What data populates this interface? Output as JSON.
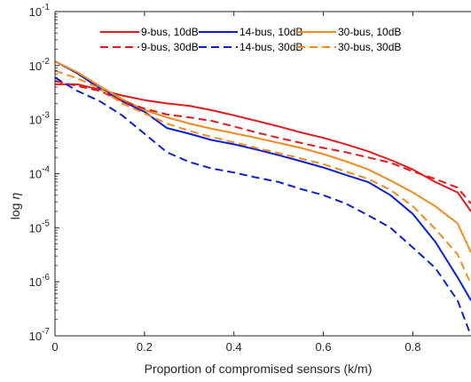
{
  "chart_data": {
    "type": "line",
    "xlabel": "Proportion of compromised sensors (k/m)",
    "ylabel_text": "log",
    "ylabel_symbol": "η",
    "x_scale": "linear",
    "y_scale": "log",
    "xlim": [
      0,
      0.93
    ],
    "ylim_exponents": [
      -7,
      -1
    ],
    "x_ticks": [
      0,
      0.2,
      0.4,
      0.6,
      0.8
    ],
    "x_tick_labels": [
      "0",
      "0.2",
      "0.4",
      "0.6",
      "0.8"
    ],
    "y_tick_exponents": [
      -7,
      -6,
      -5,
      -4,
      -3,
      -2,
      -1
    ],
    "y_tick_base": "10",
    "y_tick_exp_labels": [
      "-7",
      "-6",
      "-5",
      "-4",
      "-3",
      "-2",
      "-1"
    ],
    "grid": false,
    "legend_position": "top",
    "colors": {
      "red": "#e31a1c",
      "blue": "#0a1fd6",
      "orange": "#f5891f"
    },
    "series": [
      {
        "name": "9-bus, 10dB",
        "color": "red",
        "dash": "solid",
        "x": [
          0,
          0.05,
          0.1,
          0.15,
          0.2,
          0.25,
          0.3,
          0.35,
          0.4,
          0.45,
          0.5,
          0.55,
          0.6,
          0.65,
          0.7,
          0.75,
          0.8,
          0.85,
          0.9,
          0.93
        ],
        "y": [
          0.0045,
          0.0045,
          0.0036,
          0.0028,
          0.0023,
          0.002,
          0.0018,
          0.0015,
          0.0012,
          0.00095,
          0.00075,
          0.00058,
          0.00046,
          0.00035,
          0.00026,
          0.00018,
          0.00012,
          7e-05,
          4.5e-05,
          2e-05
        ]
      },
      {
        "name": "14-bus, 10dB",
        "color": "blue",
        "dash": "solid",
        "x": [
          0,
          0.05,
          0.1,
          0.15,
          0.2,
          0.25,
          0.3,
          0.35,
          0.4,
          0.45,
          0.5,
          0.55,
          0.6,
          0.65,
          0.7,
          0.75,
          0.8,
          0.85,
          0.9,
          0.93
        ],
        "y": [
          0.012,
          0.0072,
          0.0038,
          0.0022,
          0.0014,
          0.0007,
          0.00055,
          0.00042,
          0.00035,
          0.00028,
          0.00022,
          0.00017,
          0.00013,
          9.5e-05,
          7e-05,
          4e-05,
          1.8e-05,
          5.5e-06,
          1.2e-06,
          4.5e-07
        ]
      },
      {
        "name": "30-bus, 10dB",
        "color": "orange",
        "dash": "solid",
        "x": [
          0,
          0.05,
          0.1,
          0.15,
          0.2,
          0.25,
          0.3,
          0.35,
          0.4,
          0.45,
          0.5,
          0.55,
          0.6,
          0.65,
          0.7,
          0.75,
          0.8,
          0.85,
          0.9,
          0.93
        ],
        "y": [
          0.012,
          0.0075,
          0.0042,
          0.0024,
          0.0015,
          0.0011,
          0.00085,
          0.00068,
          0.00056,
          0.00046,
          0.00037,
          0.0003,
          0.00023,
          0.00017,
          0.00012,
          7.5e-05,
          4.5e-05,
          2.5e-05,
          1.2e-05,
          3.5e-06
        ]
      },
      {
        "name": "9-bus, 30dB",
        "color": "red",
        "dash": "dashed",
        "x": [
          0,
          0.05,
          0.1,
          0.15,
          0.2,
          0.25,
          0.3,
          0.35,
          0.4,
          0.45,
          0.5,
          0.55,
          0.6,
          0.65,
          0.7,
          0.75,
          0.8,
          0.85,
          0.9,
          0.93
        ],
        "y": [
          0.0052,
          0.0042,
          0.0034,
          0.0022,
          0.0016,
          0.00125,
          0.0011,
          0.00095,
          0.00075,
          0.00058,
          0.00046,
          0.00037,
          0.0003,
          0.00025,
          0.0002,
          0.00016,
          0.00011,
          8e-05,
          5.5e-05,
          2.8e-05
        ]
      },
      {
        "name": "14-bus, 30dB",
        "color": "blue",
        "dash": "dashed",
        "x": [
          0,
          0.05,
          0.1,
          0.15,
          0.2,
          0.25,
          0.3,
          0.35,
          0.4,
          0.45,
          0.5,
          0.55,
          0.6,
          0.65,
          0.7,
          0.75,
          0.8,
          0.85,
          0.9,
          0.93
        ],
        "y": [
          0.006,
          0.0034,
          0.0022,
          0.0012,
          0.00055,
          0.00025,
          0.000165,
          0.000125,
          0.000105,
          8.5e-05,
          7e-05,
          5.2e-05,
          4e-05,
          2.8e-05,
          1.7e-05,
          1e-05,
          4.3e-06,
          1.8e-06,
          4.5e-07,
          1e-07
        ]
      },
      {
        "name": "30-bus, 30dB",
        "color": "orange",
        "dash": "dashed",
        "x": [
          0,
          0.05,
          0.1,
          0.15,
          0.2,
          0.25,
          0.3,
          0.35,
          0.4,
          0.45,
          0.5,
          0.55,
          0.6,
          0.65,
          0.7,
          0.75,
          0.8,
          0.85,
          0.9,
          0.93
        ],
        "y": [
          0.008,
          0.0058,
          0.0038,
          0.002,
          0.0013,
          0.00085,
          0.00062,
          0.00048,
          0.00038,
          0.0003,
          0.00024,
          0.00019,
          0.00015,
          0.00011,
          8e-05,
          5e-05,
          2.5e-05,
          9.5e-06,
          3.2e-06,
          9e-07
        ]
      }
    ]
  }
}
